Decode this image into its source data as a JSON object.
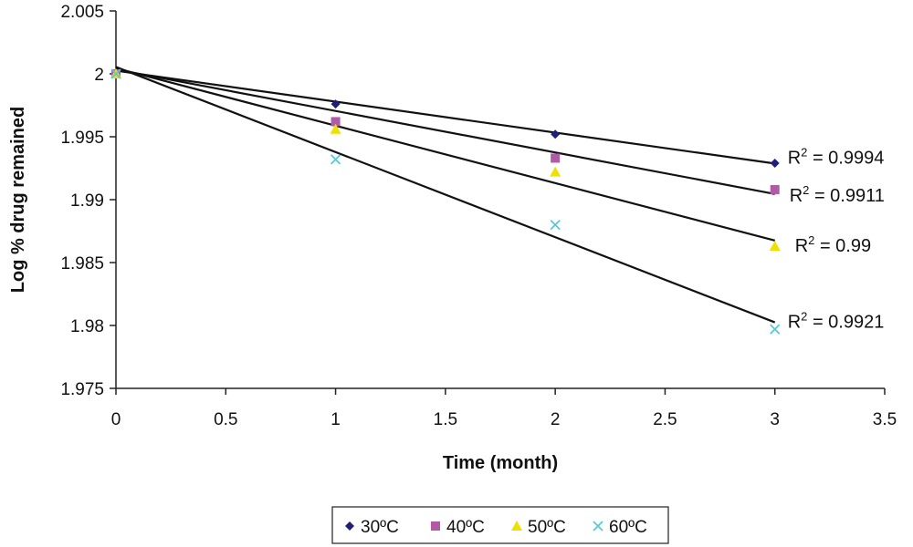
{
  "chart_data": {
    "type": "scatter",
    "title": "",
    "xlabel": "Time (month)",
    "ylabel": "Log % drug remained",
    "xlim": [
      0,
      3.5
    ],
    "ylim": [
      1.975,
      2.005
    ],
    "x_ticks": [
      "0",
      "0.5",
      "1",
      "1.5",
      "2",
      "2.5",
      "3",
      "3.5"
    ],
    "y_ticks": [
      "1.975",
      "1.98",
      "1.985",
      "1.99",
      "1.995",
      "2",
      "2.005"
    ],
    "grid": false,
    "legend_position": "bottom",
    "trendline": "linear",
    "series": [
      {
        "name": "30ºC",
        "marker": "diamond",
        "color": "#1f1f7a",
        "x": [
          0,
          1,
          2,
          3
        ],
        "y": [
          2.0,
          1.9976,
          1.9952,
          1.9929
        ],
        "trend_y": [
          2.00025,
          1.99287
        ],
        "r2_label": "R",
        "r2_sup": "2",
        "r2_value": " = 0.9994"
      },
      {
        "name": "40ºC",
        "marker": "square",
        "color": "#b05aa8",
        "x": [
          0,
          1,
          2,
          3
        ],
        "y": [
          2.0,
          1.9962,
          1.9933,
          1.9908
        ],
        "trend_y": [
          2.00035,
          1.99045
        ],
        "r2_label": "R",
        "r2_sup": "2",
        "r2_value": " = 0.9911"
      },
      {
        "name": "50ºC",
        "marker": "triangle",
        "color": "#f0e000",
        "x": [
          0,
          1,
          2,
          3
        ],
        "y": [
          2.0,
          1.9956,
          1.9922,
          1.9863
        ],
        "trend_y": [
          2.00045,
          1.98675
        ],
        "r2_label": "R",
        "r2_sup": "2",
        "r2_value": " = 0.99"
      },
      {
        "name": "60ºC",
        "marker": "x",
        "color": "#5ac8d8",
        "x": [
          0,
          1,
          2,
          3
        ],
        "y": [
          2.0,
          1.9932,
          1.988,
          1.9797
        ],
        "trend_y": [
          2.00055,
          1.98025
        ],
        "r2_label": "R",
        "r2_sup": "2",
        "r2_value": " = 0.9921"
      }
    ]
  }
}
